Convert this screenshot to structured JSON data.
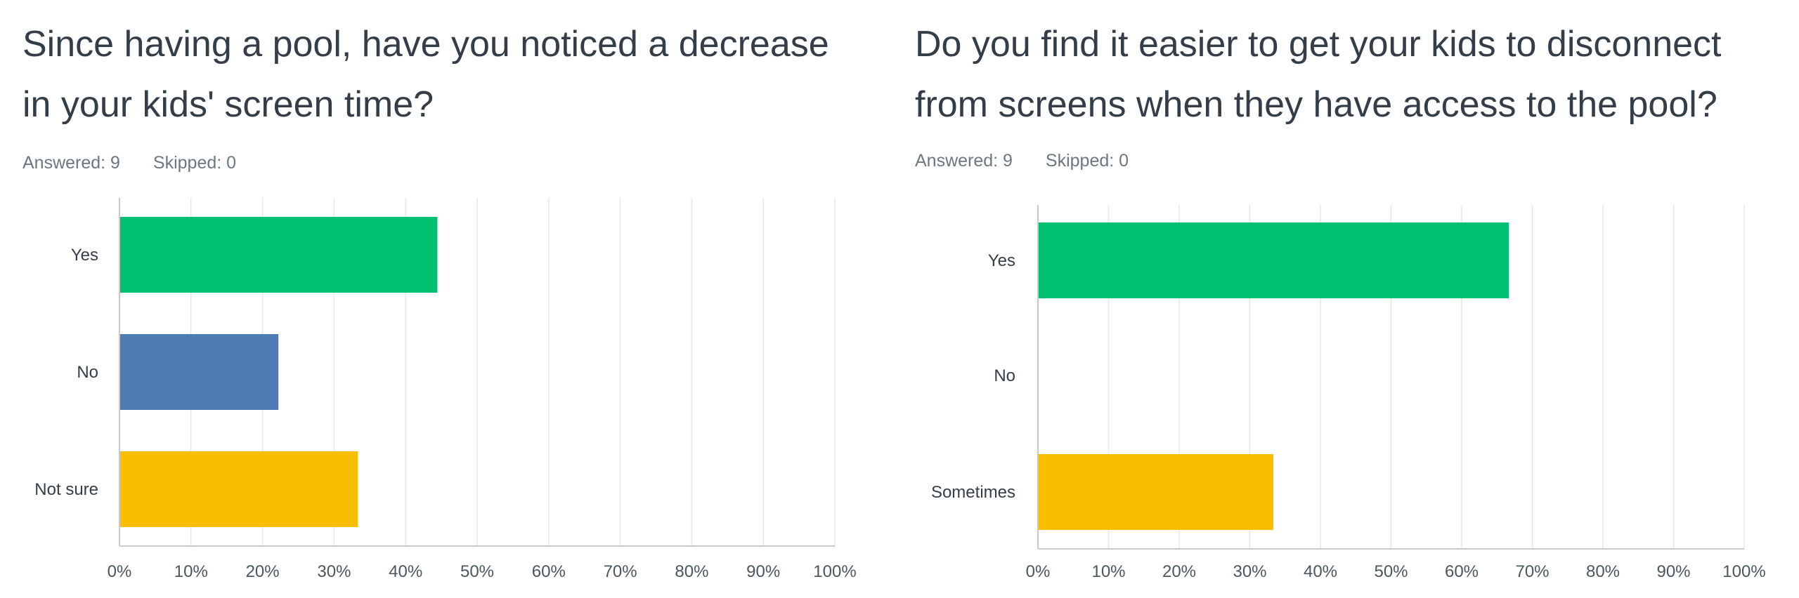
{
  "chart_data": [
    {
      "type": "bar",
      "orientation": "horizontal",
      "title": "Since having a pool, have you noticed a decrease in your kids' screen time?",
      "title_lines": [
        "Since having a pool, have you noticed a decrease",
        "in your kids' screen time?"
      ],
      "answered": "Answered: 9",
      "skipped": "Skipped: 0",
      "categories": [
        "Yes",
        "No",
        "Not sure"
      ],
      "values": [
        44.44,
        22.22,
        33.33
      ],
      "colors": [
        "#00bf6f",
        "#507cb6",
        "#f9be00"
      ],
      "xlim": [
        0,
        100
      ],
      "xticks": [
        "0%",
        "10%",
        "20%",
        "30%",
        "40%",
        "50%",
        "60%",
        "70%",
        "80%",
        "90%",
        "100%"
      ],
      "grid": true
    },
    {
      "type": "bar",
      "orientation": "horizontal",
      "title": "Do you find it easier to get your kids to disconnect from screens when they have access to the pool?",
      "title_lines": [
        "Do you find it easier to get your kids to disconnect",
        "from screens when they have access to the pool?"
      ],
      "answered": "Answered: 9",
      "skipped": "Skipped: 0",
      "categories": [
        "Yes",
        "No",
        "Sometimes"
      ],
      "values": [
        66.67,
        0,
        33.33
      ],
      "colors": [
        "#00bf6f",
        "#507cb6",
        "#f9be00"
      ],
      "xlim": [
        0,
        100
      ],
      "xticks": [
        "0%",
        "10%",
        "20%",
        "30%",
        "40%",
        "50%",
        "60%",
        "70%",
        "80%",
        "90%",
        "100%"
      ],
      "grid": true
    }
  ]
}
